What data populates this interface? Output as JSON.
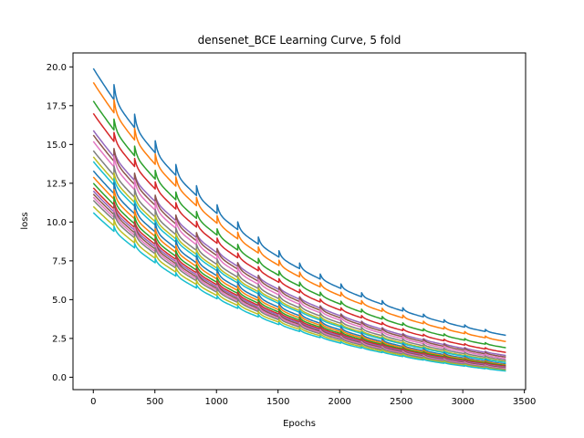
{
  "chart_data": {
    "type": "line",
    "title": "densenet_BCE Learning Curve, 5 fold",
    "xlabel": "Epochs",
    "ylabel": "loss",
    "xlim": [
      -165,
      3510
    ],
    "ylim": [
      -0.8,
      20.9
    ],
    "xticks": [
      0,
      500,
      1000,
      1500,
      2000,
      2500,
      3000,
      3500
    ],
    "yticks": [
      0.0,
      2.5,
      5.0,
      7.5,
      10.0,
      12.5,
      15.0,
      17.5,
      20.0
    ],
    "xtick_labels": [
      "0",
      "500",
      "1000",
      "1500",
      "2000",
      "2500",
      "3000",
      "3500"
    ],
    "ytick_labels": [
      "0.0",
      "2.5",
      "5.0",
      "7.5",
      "10.0",
      "12.5",
      "15.0",
      "17.5",
      "20.0"
    ],
    "grid": false,
    "legend": "none",
    "x_max": 3350,
    "series": [
      {
        "color": "#1f77b4",
        "start": 19.9,
        "end": 2.7
      },
      {
        "color": "#ff7f0e",
        "start": 19.0,
        "end": 2.3
      },
      {
        "color": "#2ca02c",
        "start": 17.8,
        "end": 1.9
      },
      {
        "color": "#d62728",
        "start": 17.0,
        "end": 1.6
      },
      {
        "color": "#9467bd",
        "start": 15.9,
        "end": 1.4
      },
      {
        "color": "#8c564b",
        "start": 15.6,
        "end": 1.3
      },
      {
        "color": "#e377c2",
        "start": 15.2,
        "end": 1.2
      },
      {
        "color": "#7f7f7f",
        "start": 14.6,
        "end": 1.1
      },
      {
        "color": "#bcbd22",
        "start": 14.2,
        "end": 1.0
      },
      {
        "color": "#17becf",
        "start": 13.9,
        "end": 0.95
      },
      {
        "color": "#1f77b4",
        "start": 13.3,
        "end": 0.85
      },
      {
        "color": "#ff7f0e",
        "start": 12.9,
        "end": 0.8
      },
      {
        "color": "#2ca02c",
        "start": 12.5,
        "end": 0.75
      },
      {
        "color": "#d62728",
        "start": 12.2,
        "end": 0.7
      },
      {
        "color": "#9467bd",
        "start": 12.0,
        "end": 0.65
      },
      {
        "color": "#8c564b",
        "start": 11.8,
        "end": 0.6
      },
      {
        "color": "#e377c2",
        "start": 11.6,
        "end": 0.55
      },
      {
        "color": "#7f7f7f",
        "start": 11.4,
        "end": 0.5
      },
      {
        "color": "#bcbd22",
        "start": 11.0,
        "end": 0.45
      },
      {
        "color": "#17becf",
        "start": 10.6,
        "end": 0.4
      }
    ]
  }
}
